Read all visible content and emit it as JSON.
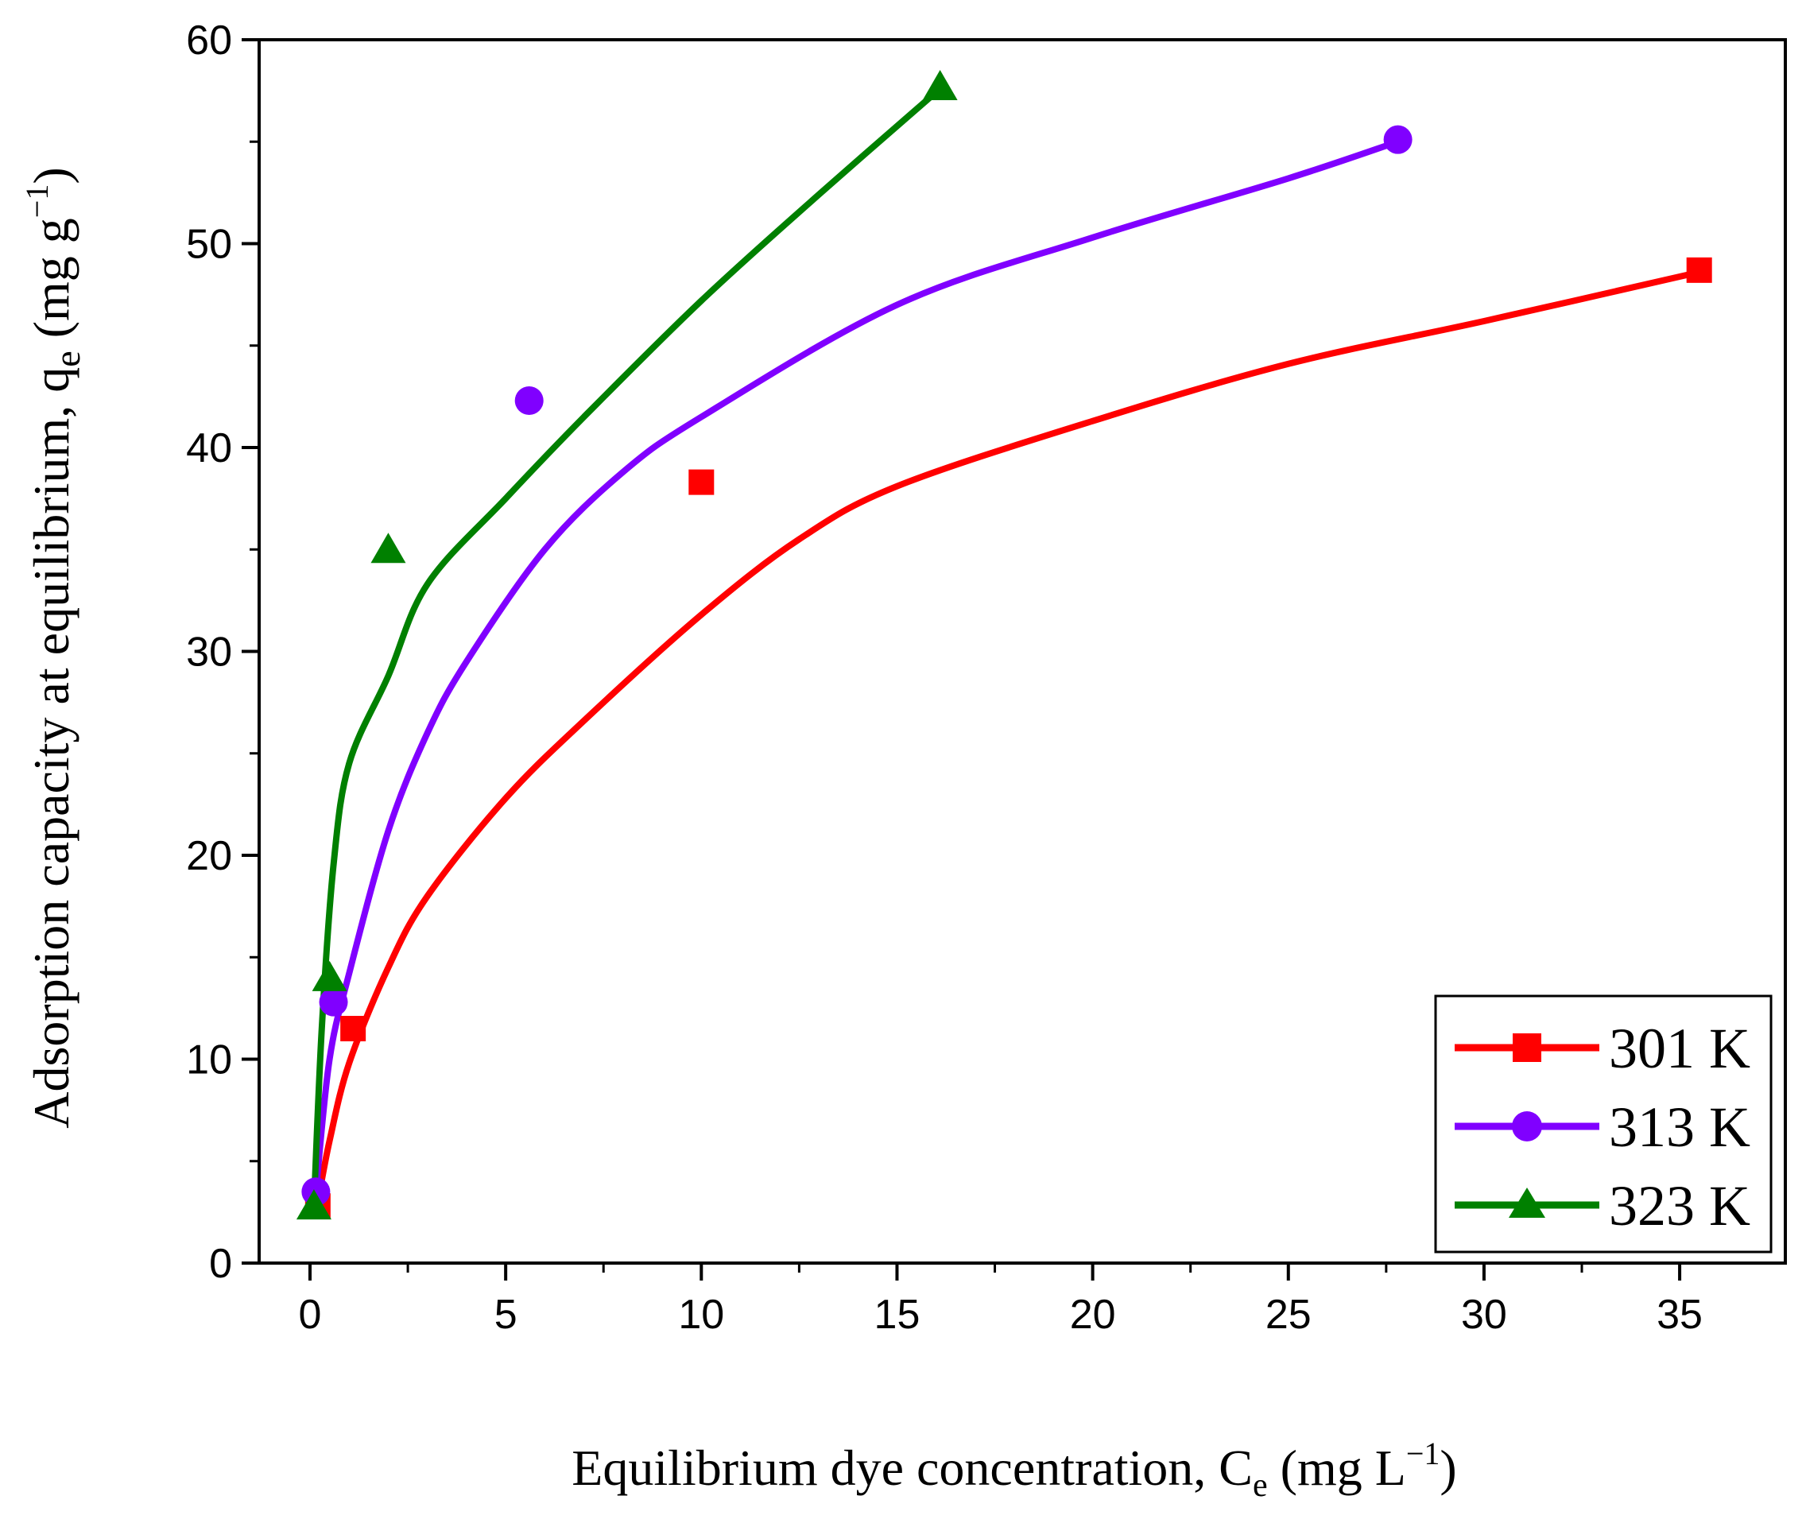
{
  "chart_data": {
    "type": "line",
    "xlabel": {
      "main": "Equilibrium dye concentration, C",
      "sub": "e",
      "open": " (mg L",
      "sup": "−1",
      "close": ")"
    },
    "ylabel": {
      "main": "Adsorption capacity at equilibrium, q",
      "sub": "e",
      "open": " (mg g",
      "sup": "−1",
      "close": ")"
    },
    "xlim": [
      -1.3,
      37.7
    ],
    "ylim": [
      0,
      60
    ],
    "x_ticks": [
      0,
      5,
      10,
      15,
      20,
      25,
      30,
      35
    ],
    "y_ticks": [
      0,
      10,
      20,
      30,
      40,
      50,
      60
    ],
    "x_tick_labels": [
      "0",
      "5",
      "10",
      "15",
      "20",
      "25",
      "30",
      "35"
    ],
    "y_tick_labels": [
      "0",
      "10",
      "20",
      "30",
      "40",
      "50",
      "60"
    ],
    "legend_position": "bottom-right",
    "series": [
      {
        "name": "301 K",
        "color": "#ff0000",
        "marker": "square",
        "points": [
          [
            0.2,
            2.8
          ],
          [
            1.1,
            11.5
          ],
          [
            10.0,
            38.3
          ],
          [
            35.5,
            48.7
          ]
        ],
        "fit": [
          [
            0.2,
            3.0
          ],
          [
            0.5,
            6.0
          ],
          [
            1,
            9.8
          ],
          [
            2,
            14.5
          ],
          [
            3,
            18.0
          ],
          [
            5,
            22.8
          ],
          [
            7,
            26.6
          ],
          [
            10,
            31.8
          ],
          [
            12.5,
            35.5
          ],
          [
            15,
            38.1
          ],
          [
            20,
            41.3
          ],
          [
            25,
            44.1
          ],
          [
            30,
            46.2
          ],
          [
            35.5,
            48.6
          ]
        ]
      },
      {
        "name": "313 K",
        "color": "#8000ff",
        "marker": "circle",
        "points": [
          [
            0.15,
            3.5
          ],
          [
            0.6,
            12.8
          ],
          [
            5.6,
            42.3
          ],
          [
            27.8,
            55.1
          ]
        ],
        "fit": [
          [
            0.15,
            3.5
          ],
          [
            0.5,
            10.0
          ],
          [
            1,
            14.2
          ],
          [
            2,
            21.2
          ],
          [
            3,
            26.0
          ],
          [
            4,
            29.5
          ],
          [
            6,
            35.0
          ],
          [
            8,
            38.8
          ],
          [
            10,
            41.5
          ],
          [
            15,
            47.0
          ],
          [
            20,
            50.3
          ],
          [
            25,
            53.2
          ],
          [
            27.8,
            55.0
          ]
        ]
      },
      {
        "name": "323 K",
        "color": "#008000",
        "marker": "triangle",
        "points": [
          [
            0.1,
            2.8
          ],
          [
            0.5,
            14.0
          ],
          [
            2.0,
            35.0
          ],
          [
            16.1,
            57.7
          ]
        ],
        "fit": [
          [
            0.1,
            2.8
          ],
          [
            0.3,
            11.5
          ],
          [
            0.6,
            19.5
          ],
          [
            1,
            24.5
          ],
          [
            2,
            28.8
          ],
          [
            3,
            33.3
          ],
          [
            5,
            37.5
          ],
          [
            7,
            41.5
          ],
          [
            10,
            47.2
          ],
          [
            13,
            52.4
          ],
          [
            16.1,
            57.6
          ]
        ]
      }
    ]
  }
}
